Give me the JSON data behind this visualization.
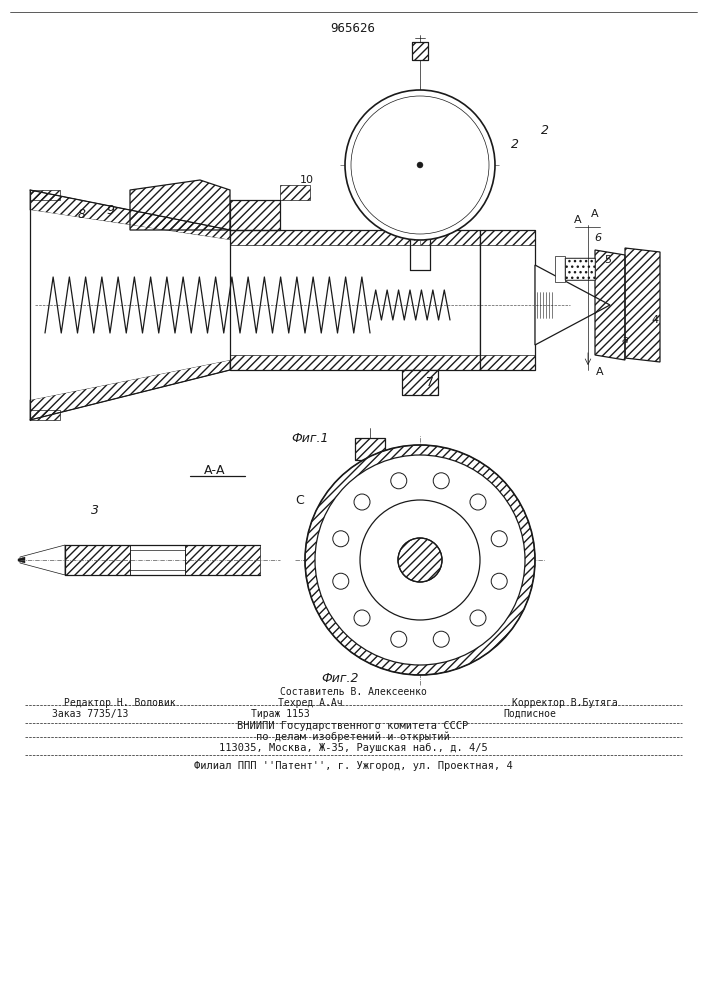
{
  "patent_number": "965626",
  "fig1_caption": "Фиг.1",
  "fig2_caption": "Фиг.2",
  "section_label": "А-А",
  "footer_line1_left": "Редактор Н. Воловик",
  "footer_line1_center": "Составитель В. Алексеенко",
  "footer_line1_right": "Корректор В.Бутяга",
  "footer_techred": "Техред А.Ач",
  "footer_line2_a": "Заказ 7735/13",
  "footer_line2_b": "Тираж 1153",
  "footer_line2_c": "Подписное",
  "footer_line3": "ВНИИПИ Государственного комитета СССР",
  "footer_line4": "по делам изобретений и открытий",
  "footer_line5": "113035, Москва, Ж-35, Раушская наб., д. 4/5",
  "footer_line6": "Филиал ППП ''Патент'', г. Ужгород, ул. Проектная, 4"
}
